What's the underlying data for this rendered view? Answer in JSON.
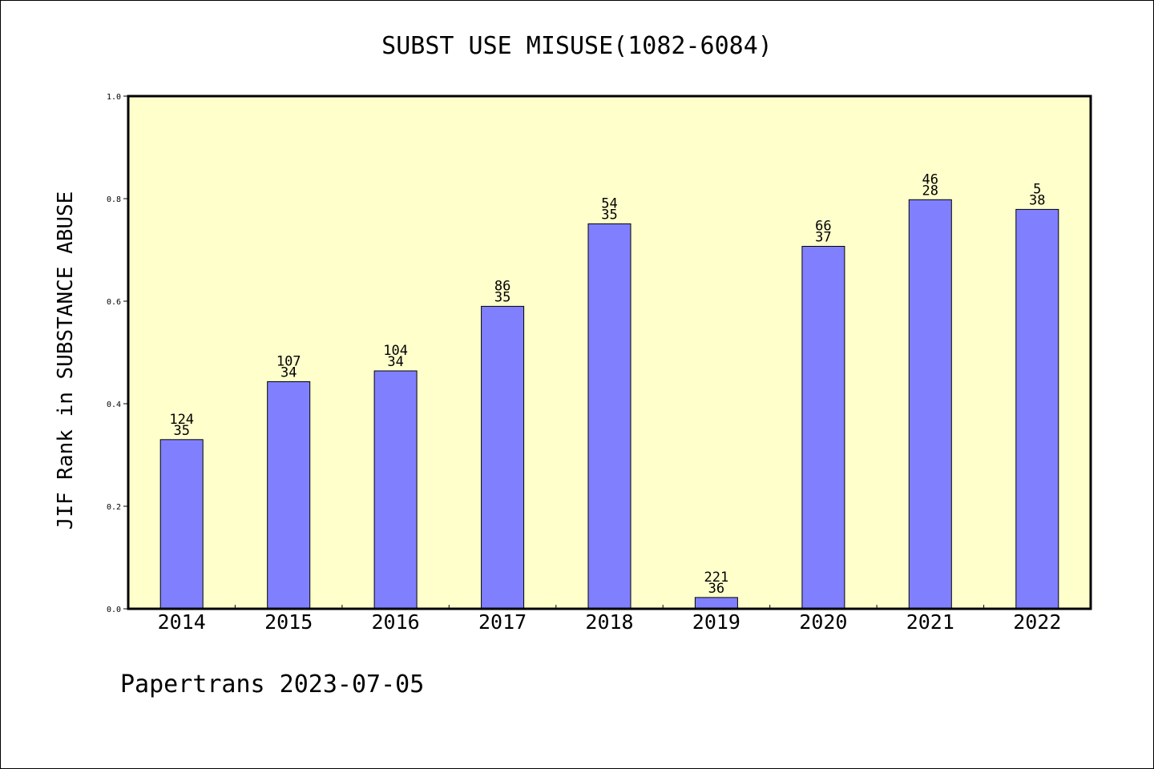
{
  "chart_data": {
    "type": "bar",
    "title": "SUBST USE MISUSE(1082-6084)",
    "ylabel": "JIF Rank in SUBSTANCE ABUSE",
    "xlabel": "",
    "categories": [
      "2014",
      "2015",
      "2016",
      "2017",
      "2018",
      "2019",
      "2020",
      "2021",
      "2022"
    ],
    "values": [
      0.33,
      0.443,
      0.464,
      0.59,
      0.751,
      0.022,
      0.707,
      0.798,
      0.779
    ],
    "labels_top": [
      "124",
      "107",
      "104",
      "86",
      "54",
      "221",
      "66",
      "46",
      "5"
    ],
    "labels_bottom": [
      "35",
      "34",
      "34",
      "35",
      "35",
      "36",
      "37",
      "28",
      "38"
    ],
    "ylim": [
      0,
      1.0
    ],
    "yticks": [
      "0.0",
      "0.2",
      "0.4",
      "0.6",
      "0.8",
      "1.0"
    ],
    "grid": false,
    "legend": "none",
    "colors": {
      "plot_bg": "#ffffcc",
      "bar": "#8080ff",
      "bar_edge": "#000000"
    }
  },
  "footer": {
    "text": "Papertrans 2023-07-05"
  }
}
